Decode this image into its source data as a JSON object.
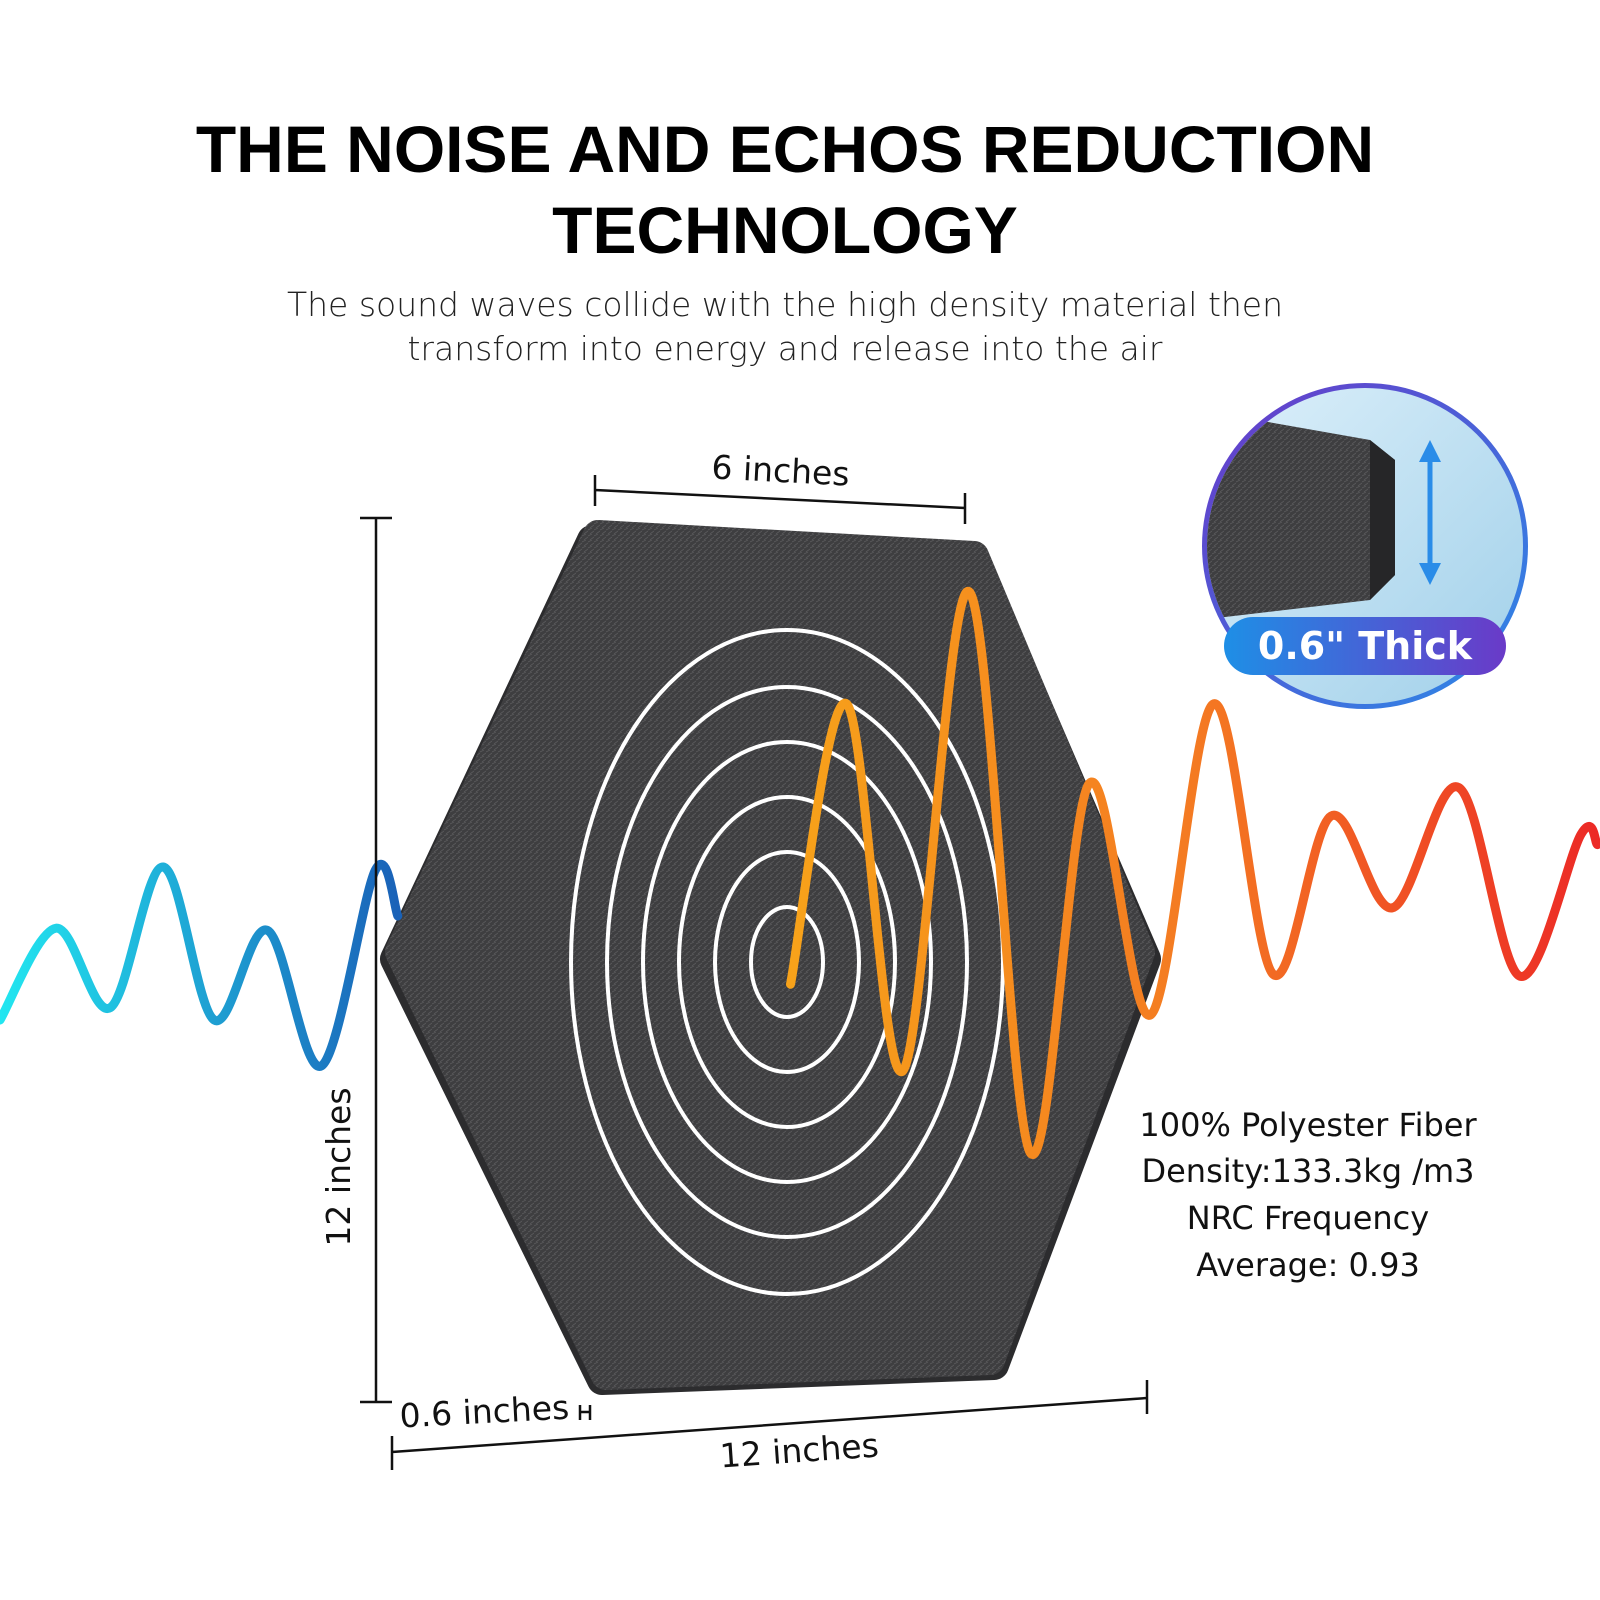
{
  "header": {
    "title": [
      "THE NOISE AND ECHOS REDUCTION",
      "TECHNOLOGY"
    ],
    "subtitle": [
      "The sound waves collide with the high density material then",
      "transform into energy and release into the air"
    ]
  },
  "dimensions": {
    "top_width": "6 inches",
    "height": "12 inches",
    "thickness": "0.6 inches",
    "width": "12 inches"
  },
  "badge": "0.6\" Thick",
  "specs": [
    "100% Polyester Fiber",
    "Density:133.3kg /m3",
    "NRC Frequency",
    "Average: 0.93"
  ]
}
